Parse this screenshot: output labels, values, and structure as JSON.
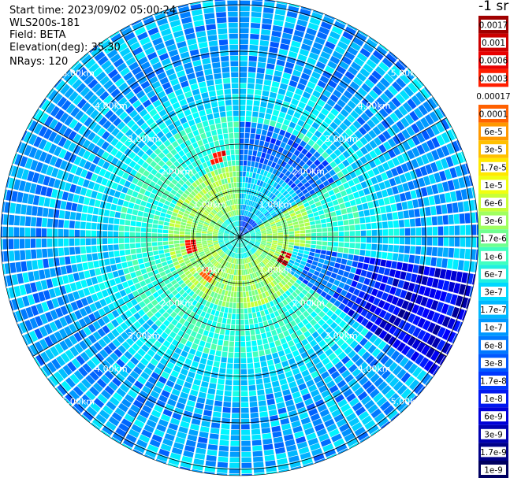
{
  "info": {
    "start_time": "Start time: 2023/09/02 05:00:24",
    "instrument": "WLS200s-181",
    "field": "Field: BETA",
    "elevation": "Elevation(deg): 35.30",
    "nrays": "NRays: 120"
  },
  "colorbar": {
    "title": "-1 sr",
    "labels": [
      "0.0017",
      "0.001",
      "0.0006",
      "0.0003",
      "0.00017",
      "0.0001",
      "6e-5",
      "3e-5",
      "1.7e-5",
      "1e-5",
      "6e-6",
      "3e-6",
      "1.7e-6",
      "1e-6",
      "6e-7",
      "3e-7",
      "1.7e-7",
      "1e-7",
      "6e-8",
      "3e-8",
      "1.7e-8",
      "1e-8",
      "6e-9",
      "3e-9",
      "1.7e-9",
      "1e-9"
    ],
    "colors": [
      "#a00000",
      "#cc0000",
      "#e80000",
      "#ff1e00",
      "#ffffff",
      "#ff6000",
      "#ff9800",
      "#ffc000",
      "#ffe800",
      "#f0ff10",
      "#c8ff38",
      "#a0ff60",
      "#70ff90",
      "#40ffc0",
      "#20f0e0",
      "#00d8ff",
      "#00b8ff",
      "#0098ff",
      "#0078ff",
      "#0058ff",
      "#0038ff",
      "#0018f0",
      "#0000d8",
      "#0000b0",
      "#000088",
      "#000060"
    ],
    "label_colors": [
      "#ffffff",
      "#ffffff",
      "#ffffff",
      "#ffffff",
      "#000000",
      "#000000",
      "#000000",
      "#000000",
      "#000000",
      "#000000",
      "#000000",
      "#000000",
      "#000000",
      "#000000",
      "#000000",
      "#000000",
      "#000000",
      "#000000",
      "#000000",
      "#000000",
      "#000000",
      "#ffffff",
      "#ffffff",
      "#ffffff",
      "#ffffff",
      "#ffffff"
    ]
  },
  "chart_data": {
    "type": "heatmap",
    "projection": "polar-ppi",
    "field": "BETA",
    "rays": 120,
    "range_rings_km": [
      1,
      2,
      3,
      4,
      5
    ],
    "ring_labels": [
      "1.00km",
      "2.00km",
      "3.00km",
      "4.00km",
      "5.00km"
    ],
    "radial_lines_deg": [
      0,
      30,
      60,
      90,
      120,
      150,
      180,
      210,
      240,
      270,
      300,
      330
    ],
    "max_range_km": 5.1,
    "color_scale": "log",
    "value_range": [
      1e-09,
      0.0017
    ],
    "features": [
      {
        "description": "high backscatter arc",
        "azimuth_deg": 345,
        "range_km": 1.8,
        "value": 0.0003
      },
      {
        "description": "high backscatter arc",
        "azimuth_deg": 115,
        "range_km": 1.1,
        "value": 0.0006
      },
      {
        "description": "high backscatter arc",
        "azimuth_deg": 260,
        "range_km": 1.1,
        "value": 0.0003
      },
      {
        "description": "high backscatter spot",
        "azimuth_deg": 220,
        "range_km": 1.05,
        "value": 0.0001
      }
    ]
  }
}
